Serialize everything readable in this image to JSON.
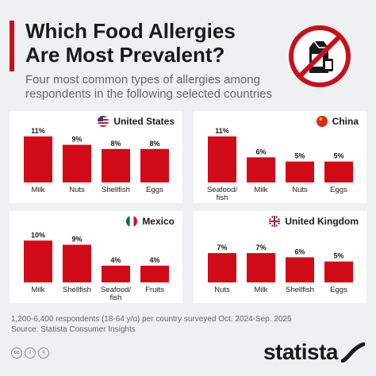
{
  "header": {
    "title_lines": [
      "Which Food Allergies",
      "Are Most Prevalent?"
    ],
    "subtitle_lines": [
      "Four most common types of allergies among",
      "respondents in the following selected countries"
    ]
  },
  "footer": {
    "note": "1,200-6,400 respondents (18-64 y/o) per country surveyed Oct. 2024-Sep. 2025",
    "source": "Source: Statista Consumer Insights",
    "license_icons": [
      "cc",
      "i",
      "="
    ],
    "brand": "statista"
  },
  "colors": {
    "bar": "#d10a17",
    "accent": "#c8101d",
    "background": "#eef0f1",
    "panel": "#ffffff"
  },
  "chart_data": [
    {
      "type": "bar",
      "title": "United States",
      "flag": "us-flag-icon",
      "categories": [
        "Milk",
        "Nuts",
        "Shellfish",
        "Eggs"
      ],
      "values": [
        11,
        9,
        8,
        8
      ],
      "value_labels": [
        "11%",
        "9%",
        "8%",
        "8%"
      ]
    },
    {
      "type": "bar",
      "title": "China",
      "flag": "china-flag-icon",
      "categories": [
        [
          "Seafood/",
          "fish"
        ],
        [
          "Milk"
        ],
        [
          "Nuts"
        ],
        [
          "Eggs"
        ]
      ],
      "values": [
        11,
        6,
        5,
        5
      ],
      "value_labels": [
        "11%",
        "6%",
        "5%",
        "5%"
      ]
    },
    {
      "type": "bar",
      "title": "Mexico",
      "flag": "mexico-flag-icon",
      "categories": [
        [
          "Milk"
        ],
        [
          "Shellfish"
        ],
        [
          "Seafood/",
          "fish"
        ],
        [
          "Fruits"
        ]
      ],
      "values": [
        10,
        9,
        4,
        4
      ],
      "value_labels": [
        "10%",
        "9%",
        "4%",
        "4%"
      ]
    },
    {
      "type": "bar",
      "title": "United Kingdom",
      "flag": "uk-flag-icon",
      "categories": [
        "Nuts",
        "Milk",
        "Shellfish",
        "Eggs"
      ],
      "values": [
        7,
        7,
        6,
        5
      ],
      "value_labels": [
        "7%",
        "7%",
        "6%",
        "5%"
      ]
    }
  ]
}
